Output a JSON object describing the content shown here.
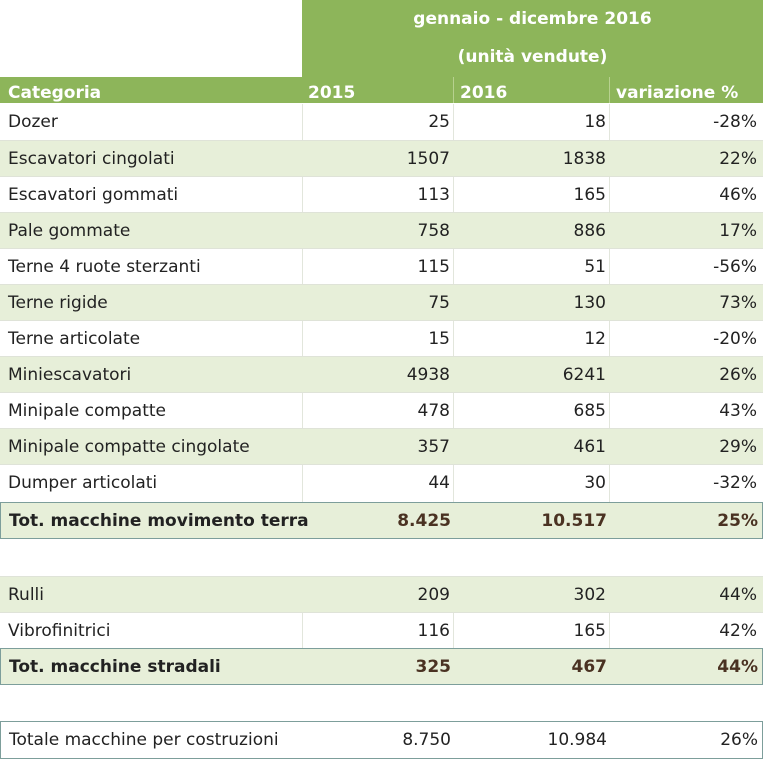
{
  "header": {
    "period": "gennaio - dicembre 2016",
    "unit": "(unità vendute)",
    "columns": {
      "category": "Categoria",
      "y2015": "2015",
      "y2016": "2016",
      "change": "variazione %"
    }
  },
  "earthmoving": [
    {
      "name": "Dozer",
      "y2015": "25",
      "y2016": "18",
      "change": "-28%"
    },
    {
      "name": "Escavatori cingolati",
      "y2015": "1507",
      "y2016": "1838",
      "change": "22%"
    },
    {
      "name": "Escavatori gommati",
      "y2015": "113",
      "y2016": "165",
      "change": "46%"
    },
    {
      "name": "Pale gommate",
      "y2015": "758",
      "y2016": "886",
      "change": "17%"
    },
    {
      "name": "Terne 4 ruote sterzanti",
      "y2015": "115",
      "y2016": "51",
      "change": "-56%"
    },
    {
      "name": "Terne rigide",
      "y2015": "75",
      "y2016": "130",
      "change": "73%"
    },
    {
      "name": "Terne articolate",
      "y2015": "15",
      "y2016": "12",
      "change": "-20%"
    },
    {
      "name": "Miniescavatori",
      "y2015": "4938",
      "y2016": "6241",
      "change": "26%"
    },
    {
      "name": "Minipale compatte",
      "y2015": "478",
      "y2016": "685",
      "change": "43%"
    },
    {
      "name": "Minipale compatte cingolate",
      "y2015": "357",
      "y2016": "461",
      "change": "29%"
    },
    {
      "name": "Dumper articolati",
      "y2015": "44",
      "y2016": "30",
      "change": "-32%"
    }
  ],
  "earthmoving_total": {
    "name": "Tot. macchine movimento terra",
    "y2015": "8.425",
    "y2016": "10.517",
    "change": "25%"
  },
  "road": [
    {
      "name": "Rulli",
      "y2015": "209",
      "y2016": "302",
      "change": "44%"
    },
    {
      "name": "Vibrofinitrici",
      "y2015": "116",
      "y2016": "165",
      "change": "42%"
    }
  ],
  "road_total": {
    "name": "Tot. macchine stradali",
    "y2015": "325",
    "y2016": "467",
    "change": "44%"
  },
  "grand_total": {
    "name": "Totale macchine per costruzioni",
    "y2015": "8.750",
    "y2016": "10.984",
    "change": "26%"
  }
}
